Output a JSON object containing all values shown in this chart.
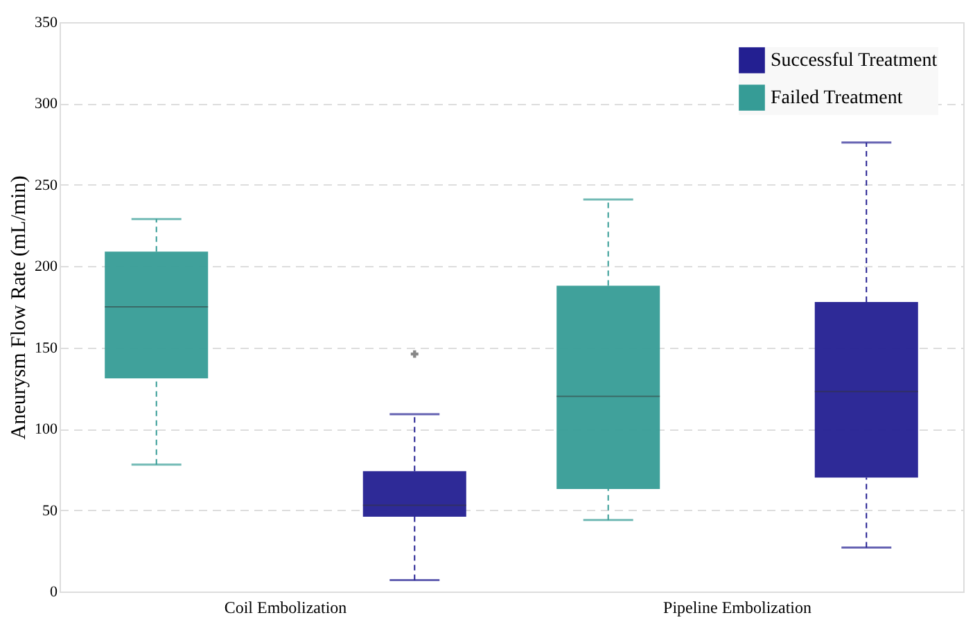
{
  "chart_data": {
    "type": "box",
    "ylabel": "Aneurysm Flow Rate (mL/min)",
    "categories": [
      "Coil Embolization",
      "Pipeline Embolization"
    ],
    "series": [
      {
        "name": "Successful Treatment",
        "color": "#231f91",
        "boxes": [
          {
            "low": 7,
            "q1": 46,
            "median": 53,
            "q3": 74,
            "high": 109,
            "outliers": [
              146
            ]
          },
          {
            "low": 27,
            "q1": 70,
            "median": 123,
            "q3": 178,
            "high": 276
          }
        ]
      },
      {
        "name": "Failed Treatment",
        "color": "#369c96",
        "boxes": [
          {
            "low": 78,
            "q1": 131,
            "median": 175,
            "q3": 209,
            "high": 229
          },
          {
            "low": 44,
            "q1": 63,
            "median": 120,
            "q3": 188,
            "high": 241
          }
        ]
      }
    ],
    "ylim": [
      0,
      350
    ],
    "yticks": [
      0,
      50,
      100,
      150,
      200,
      250,
      300,
      350
    ],
    "grid": "y",
    "legend": "top right",
    "line_style": "dashed"
  }
}
